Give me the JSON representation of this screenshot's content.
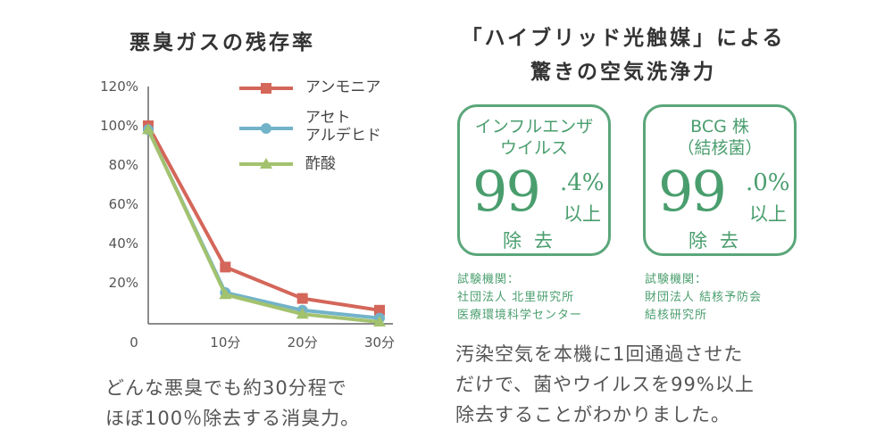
{
  "chart_data": {
    "type": "line",
    "title": "悪臭ガスの残存率",
    "x": [
      0,
      10,
      20,
      30
    ],
    "x_tick_labels": [
      "0",
      "10分",
      "20分",
      "30分"
    ],
    "y_tick_labels": [
      "120%",
      "100%",
      "80%",
      "60%",
      "40%",
      "20%"
    ],
    "ylim": [
      0,
      120
    ],
    "legend_position": "top-right",
    "series": [
      {
        "name": "アンモニア",
        "values": [
          100,
          28,
          12,
          6
        ],
        "color": "#d4665a",
        "marker": "square"
      },
      {
        "name_line1": "アセト",
        "name_line2": "アルデヒド",
        "values": [
          98,
          15,
          6,
          2
        ],
        "color": "#72b3c9",
        "marker": "circle"
      },
      {
        "name": "酢酸",
        "values": [
          98,
          14,
          4,
          0
        ],
        "color": "#a3c26e",
        "marker": "triangle"
      }
    ]
  },
  "left_caption": [
    "どんな悪臭でも約30分程で",
    "ほぼ100％除去する消臭力。"
  ],
  "right_title": [
    "「ハイブリッド光触媒」による",
    "驚きの空気洗浄力"
  ],
  "boxes": [
    {
      "line1": "インフルエンザ",
      "line2": "ウイルス",
      "big": "99",
      "dec": ".4%",
      "ijo": "以上",
      "jokyo": "除去",
      "org": [
        "試験機関：",
        "社団法人 北里研究所",
        "医療環境科学センター"
      ]
    },
    {
      "line1": "BCG 株",
      "line2": "（結核菌）",
      "big": "99",
      "dec": ".0%",
      "ijo": "以上",
      "jokyo": "除去",
      "org": [
        "試験機関：",
        "財団法人 結核予防会",
        "結核研究所"
      ]
    }
  ],
  "right_caption": [
    "汚染空気を本機に1回通過させた",
    "だけで、菌やウイルスを99%以上",
    "除去することがわかりました。"
  ]
}
